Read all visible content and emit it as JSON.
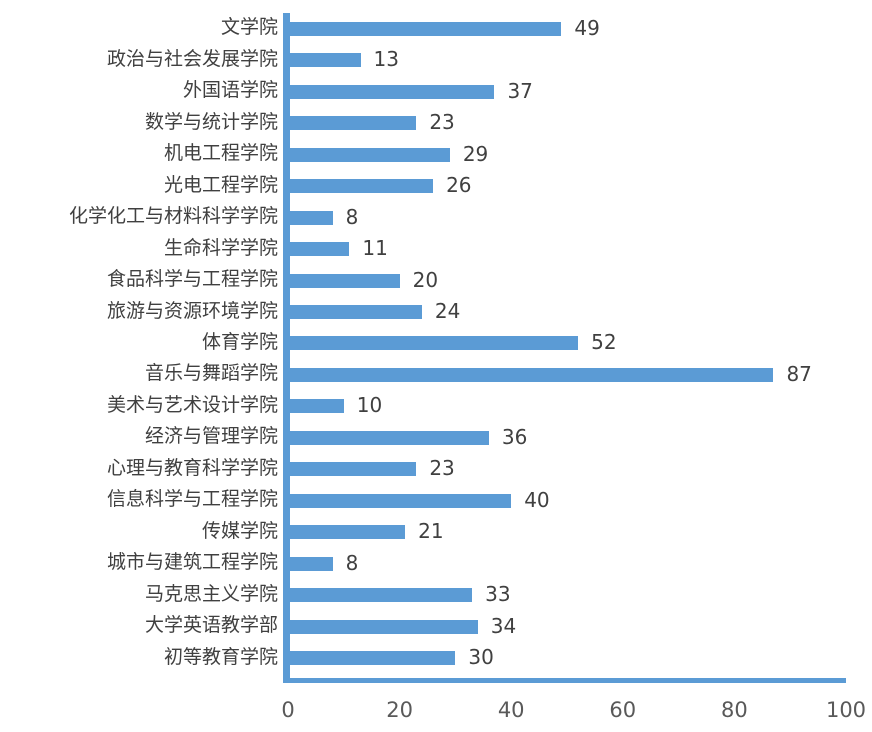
{
  "chart_data": {
    "type": "bar",
    "orientation": "horizontal",
    "title": "",
    "xlabel": "",
    "ylabel": "",
    "categories": [
      "文学院",
      "政治与社会发展学院",
      "外国语学院",
      "数学与统计学院",
      "机电工程学院",
      "光电工程学院",
      "化学化工与材料科学学院",
      "生命科学学院",
      "食品科学与工程学院",
      "旅游与资源环境学院",
      "体育学院",
      "音乐与舞蹈学院",
      "美术与艺术设计学院",
      "经济与管理学院",
      "心理与教育科学学院",
      "信息科学与工程学院",
      "传媒学院",
      "城市与建筑工程学院",
      "马克思主义学院",
      "大学英语教学部",
      "初等教育学院"
    ],
    "values": [
      49,
      13,
      37,
      23,
      29,
      26,
      8,
      11,
      20,
      24,
      52,
      87,
      10,
      36,
      23,
      40,
      21,
      8,
      33,
      34,
      30
    ],
    "data_labels_shown": true,
    "x_ticks": [
      0,
      20,
      40,
      60,
      80,
      100
    ],
    "xlim": [
      0,
      100
    ],
    "grid": false,
    "legend": "none",
    "colors": {
      "bar": "#5B9BD5",
      "axis_line": "#5B9BD5",
      "category_label": "#404040",
      "value_label": "#404040",
      "tick_label": "#595959",
      "background": "#ffffff"
    }
  }
}
